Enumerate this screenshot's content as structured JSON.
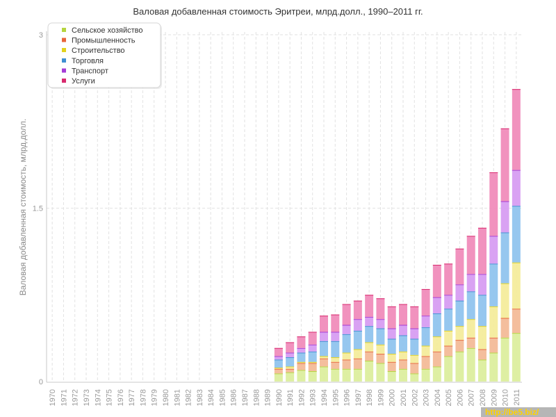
{
  "chart_data": {
    "type": "bar",
    "stacked": true,
    "title": "Валовая добавленная стоимость Эритреи, млрд.долл., 1990–2011 гг.",
    "xlabel": "",
    "ylabel": "Валовая добавленная стоимость, млрд.долл.",
    "ylim": [
      0,
      3
    ],
    "yticks": [
      0,
      1.5,
      3
    ],
    "grid": true,
    "legend_position": "top-left",
    "categories": [
      "1970",
      "1971",
      "1972",
      "1973",
      "1974",
      "1975",
      "1976",
      "1977",
      "1978",
      "1979",
      "1980",
      "1981",
      "1982",
      "1983",
      "1984",
      "1985",
      "1986",
      "1987",
      "1988",
      "1989",
      "1990",
      "1991",
      "1992",
      "1993",
      "1994",
      "1995",
      "1996",
      "1997",
      "1998",
      "1999",
      "2000",
      "2001",
      "2002",
      "2003",
      "2004",
      "2005",
      "2006",
      "2007",
      "2008",
      "2009",
      "2010",
      "2011"
    ],
    "series": [
      {
        "name": "Сельское хозяйство",
        "color": "#b5d43f",
        "fill": "#dcee9e",
        "values": [
          null,
          null,
          null,
          null,
          null,
          null,
          null,
          null,
          null,
          null,
          null,
          null,
          null,
          null,
          null,
          null,
          null,
          null,
          null,
          null,
          0.07,
          0.08,
          0.1,
          0.09,
          0.13,
          0.11,
          0.11,
          0.11,
          0.18,
          0.16,
          0.09,
          0.11,
          0.07,
          0.11,
          0.13,
          0.22,
          0.26,
          0.29,
          0.19,
          0.25,
          0.38,
          0.42
        ]
      },
      {
        "name": "Промышленность",
        "color": "#e8643a",
        "fill": "#f3bb98",
        "values": [
          null,
          null,
          null,
          null,
          null,
          null,
          null,
          null,
          null,
          null,
          null,
          null,
          null,
          null,
          null,
          null,
          null,
          null,
          null,
          null,
          0.04,
          0.03,
          0.06,
          0.07,
          0.07,
          0.06,
          0.08,
          0.09,
          0.08,
          0.08,
          0.08,
          0.08,
          0.09,
          0.11,
          0.13,
          0.09,
          0.1,
          0.09,
          0.09,
          0.13,
          0.17,
          0.21
        ]
      },
      {
        "name": "Строительство",
        "color": "#e2d21c",
        "fill": "#f4ec9c",
        "values": [
          null,
          null,
          null,
          null,
          null,
          null,
          null,
          null,
          null,
          null,
          null,
          null,
          null,
          null,
          null,
          null,
          null,
          null,
          null,
          null,
          0.01,
          0.02,
          0.01,
          0.01,
          0.02,
          0.04,
          0.06,
          0.08,
          0.08,
          0.08,
          0.07,
          0.07,
          0.07,
          0.09,
          0.13,
          0.13,
          0.12,
          0.16,
          0.2,
          0.27,
          0.3,
          0.4
        ]
      },
      {
        "name": "Торговля",
        "color": "#3f8fd2",
        "fill": "#90c4ee",
        "values": [
          null,
          null,
          null,
          null,
          null,
          null,
          null,
          null,
          null,
          null,
          null,
          null,
          null,
          null,
          null,
          null,
          null,
          null,
          null,
          null,
          0.07,
          0.08,
          0.08,
          0.09,
          0.13,
          0.14,
          0.16,
          0.16,
          0.14,
          0.14,
          0.13,
          0.14,
          0.14,
          0.16,
          0.2,
          0.19,
          0.22,
          0.24,
          0.27,
          0.37,
          0.44,
          0.49
        ]
      },
      {
        "name": "Транспорт",
        "color": "#a43cd6",
        "fill": "#d79df2",
        "values": [
          null,
          null,
          null,
          null,
          null,
          null,
          null,
          null,
          null,
          null,
          null,
          null,
          null,
          null,
          null,
          null,
          null,
          null,
          null,
          null,
          0.03,
          0.04,
          0.04,
          0.06,
          0.08,
          0.08,
          0.08,
          0.1,
          0.08,
          0.08,
          0.09,
          0.09,
          0.09,
          0.1,
          0.14,
          0.12,
          0.14,
          0.15,
          0.18,
          0.24,
          0.27,
          0.31
        ]
      },
      {
        "name": "Услуги",
        "color": "#d82a6e",
        "fill": "#f08cba",
        "values": [
          null,
          null,
          null,
          null,
          null,
          null,
          null,
          null,
          null,
          null,
          null,
          null,
          null,
          null,
          null,
          null,
          null,
          null,
          null,
          null,
          0.07,
          0.09,
          0.1,
          0.11,
          0.14,
          0.15,
          0.18,
          0.16,
          0.19,
          0.18,
          0.19,
          0.18,
          0.19,
          0.23,
          0.28,
          0.27,
          0.31,
          0.33,
          0.4,
          0.55,
          0.63,
          0.7
        ]
      }
    ]
  },
  "watermark": "http://be5.biz/"
}
